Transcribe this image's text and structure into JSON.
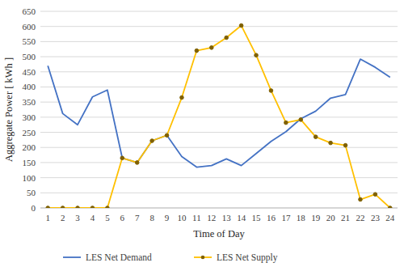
{
  "chart_data": {
    "type": "line",
    "x_label": "Time of Day",
    "y_label": "Aggregate Power  [ kWh ]",
    "categories": [
      "1",
      "2",
      "3",
      "4",
      "5",
      "6",
      "7",
      "8",
      "9",
      "10",
      "11",
      "12",
      "13",
      "14",
      "15",
      "16",
      "17",
      "18",
      "19",
      "20",
      "21",
      "22",
      "23",
      "24"
    ],
    "series": [
      {
        "name": "LES Net Demand",
        "color": "#4472c4",
        "marker": "none",
        "line_style": "solid",
        "values": [
          470,
          312,
          275,
          367,
          390,
          165,
          150,
          222,
          240,
          170,
          135,
          140,
          162,
          140,
          180,
          220,
          252,
          295,
          320,
          363,
          375,
          492,
          465,
          432
        ]
      },
      {
        "name": "LES Net Supply",
        "color": "#ffc000",
        "marker": "circle",
        "line_style": "solid",
        "values": [
          0,
          0,
          0,
          0,
          0,
          165,
          150,
          222,
          240,
          365,
          520,
          530,
          563,
          603,
          505,
          388,
          282,
          292,
          235,
          215,
          207,
          28,
          45,
          0
        ]
      }
    ],
    "ylim": [
      0,
      650
    ],
    "yticks": [
      0,
      50,
      100,
      150,
      200,
      250,
      300,
      350,
      400,
      450,
      500,
      550,
      600,
      650
    ],
    "grid": true,
    "legend": "bottom"
  }
}
